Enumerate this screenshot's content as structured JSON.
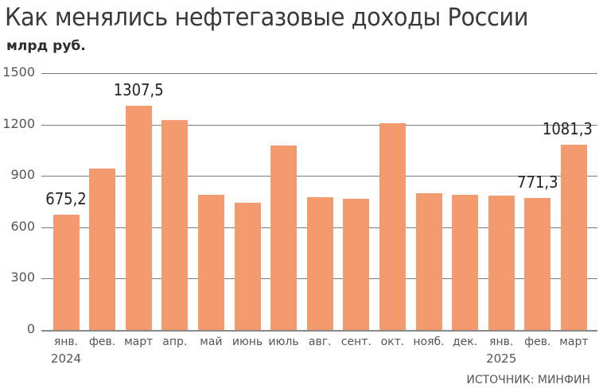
{
  "title": "Как менялись нефтегазовые доходы России",
  "subtitle": "млрд руб.",
  "source": "ИСТОЧНИК: МИНФИН",
  "colors": {
    "bar": "#f39b6e",
    "grid": "#7a7a7a",
    "text": "#555555"
  },
  "y_ticks": [
    "1500",
    "1200",
    "900",
    "600",
    "300",
    "0"
  ],
  "x_labels": [
    "янв.",
    "фев.",
    "март",
    "апр.",
    "май",
    "июнь",
    "июль",
    "авг.",
    "сент.",
    "окт.",
    "нояб.",
    "дек.",
    "янв.",
    "фев.",
    "март"
  ],
  "years": [
    {
      "label": "2024",
      "index": 0
    },
    {
      "label": "2025",
      "index": 12
    }
  ],
  "data_labels": [
    {
      "index": 0,
      "text": "675,2"
    },
    {
      "index": 2,
      "text": "1307,5"
    },
    {
      "index": 13,
      "text": "771,3"
    },
    {
      "index": 14,
      "text": "1081,3"
    }
  ],
  "chart_data": {
    "type": "bar",
    "title": "Как менялись нефтегазовые доходы России",
    "subtitle": "млрд руб.",
    "xlabel": "",
    "ylabel": "млрд руб.",
    "ylim": [
      0,
      1500
    ],
    "yticks": [
      0,
      300,
      600,
      900,
      1200,
      1500
    ],
    "grid": true,
    "categories": [
      "янв. 2024",
      "фев. 2024",
      "март 2024",
      "апр. 2024",
      "май 2024",
      "июнь 2024",
      "июль 2024",
      "авг. 2024",
      "сент. 2024",
      "окт. 2024",
      "нояб. 2024",
      "дек. 2024",
      "янв. 2025",
      "фев. 2025",
      "март 2025"
    ],
    "values": [
      675.2,
      943,
      1307.5,
      1226,
      790,
      743,
      1078,
      776,
      766,
      1208,
      799,
      790,
      785,
      771.3,
      1081.3
    ],
    "annotations": [
      "675,2",
      "1307,5",
      "771,3",
      "1081,3"
    ],
    "source": "ИСТОЧНИК: МИНФИН"
  }
}
